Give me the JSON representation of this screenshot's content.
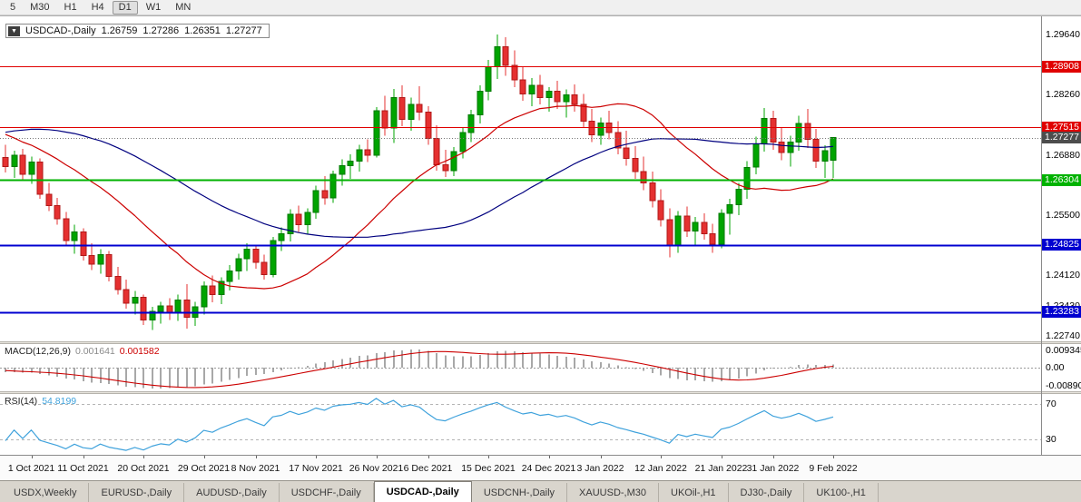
{
  "toolbar": {
    "buttons": [
      "5",
      "M30",
      "H1",
      "H4",
      "D1",
      "W1",
      "MN"
    ],
    "active": "D1"
  },
  "chart_info": {
    "dropdown": "▼",
    "symbol_period": "USDCAD-,Daily",
    "open": "1.26759",
    "high": "1.27286",
    "low": "1.26351",
    "close": "1.27277"
  },
  "chart_data": {
    "type": "candlestick",
    "symbol": "USDCAD-",
    "timeframe": "Daily",
    "ohlc_display": {
      "open": "1.26759",
      "high": "1.27286",
      "low": "1.26351",
      "close": "1.27277"
    },
    "y_axis": {
      "min": 1.2261,
      "max": 1.3006,
      "tick_labels": [
        {
          "price": 1.2964,
          "text": "1.29640"
        },
        {
          "price": 1.2826,
          "text": "1.28260"
        },
        {
          "price": 1.2688,
          "text": "1.26880"
        },
        {
          "price": 1.255,
          "text": "1.25500"
        },
        {
          "price": 1.2412,
          "text": "1.24120"
        },
        {
          "price": 1.2343,
          "text": "1.23430"
        },
        {
          "price": 1.2274,
          "text": "1.22740"
        }
      ]
    },
    "price_badges": [
      {
        "text": "1.28908",
        "price": 1.28908,
        "color": "#E00000"
      },
      {
        "text": "1.27515",
        "price": 1.27515,
        "color": "#E00000"
      },
      {
        "text": "1.27277",
        "price": 1.27277,
        "color": "#4D4D4D"
      },
      {
        "text": "1.26304",
        "price": 1.26304,
        "color": "#00B200"
      },
      {
        "text": "1.24825",
        "price": 1.24825,
        "color": "#0000D0"
      },
      {
        "text": "1.23283",
        "price": 1.23283,
        "color": "#0000D0"
      }
    ],
    "hlines": [
      {
        "price": 1.28908,
        "color": "#E00000",
        "w": 1.4
      },
      {
        "price": 1.27515,
        "color": "#E00000",
        "w": 1.4
      },
      {
        "price": 1.26304,
        "color": "#00B200",
        "w": 2
      },
      {
        "price": 1.24825,
        "color": "#0000D0",
        "w": 2
      },
      {
        "price": 1.23283,
        "color": "#0000D0",
        "w": 2
      }
    ],
    "current_price_line": {
      "price": 1.27277,
      "color": "#777777"
    },
    "x_ticks": [
      {
        "i": 3,
        "label": "1 Oct 2021"
      },
      {
        "i": 9,
        "label": "11 Oct 2021"
      },
      {
        "i": 16,
        "label": "20 Oct 2021"
      },
      {
        "i": 23,
        "label": "29 Oct 2021"
      },
      {
        "i": 29,
        "label": "8 Nov 2021"
      },
      {
        "i": 36,
        "label": "17 Nov 2021"
      },
      {
        "i": 43,
        "label": "26 Nov 2021"
      },
      {
        "i": 49,
        "label": "6 Dec 2021"
      },
      {
        "i": 56,
        "label": "15 Dec 2021"
      },
      {
        "i": 63,
        "label": "24 Dec 2021"
      },
      {
        "i": 69,
        "label": "3 Jan 2022"
      },
      {
        "i": 76,
        "label": "12 Jan 2022"
      },
      {
        "i": 83,
        "label": "21 Jan 2022"
      },
      {
        "i": 89,
        "label": "31 Jan 2022"
      },
      {
        "i": 96,
        "label": "9 Feb 2022"
      }
    ],
    "candles": [
      [
        1.2682,
        1.2712,
        1.2648,
        1.2662
      ],
      [
        1.2662,
        1.2698,
        1.2636,
        1.2688
      ],
      [
        1.2688,
        1.2702,
        1.2628,
        1.2644
      ],
      [
        1.2644,
        1.2684,
        1.2622,
        1.2672
      ],
      [
        1.2672,
        1.268,
        1.2588,
        1.2598
      ],
      [
        1.2598,
        1.2624,
        1.256,
        1.2572
      ],
      [
        1.2572,
        1.259,
        1.2528,
        1.2542
      ],
      [
        1.2542,
        1.2558,
        1.248,
        1.2492
      ],
      [
        1.2492,
        1.2528,
        1.2462,
        1.2512
      ],
      [
        1.2512,
        1.252,
        1.2446,
        1.2458
      ],
      [
        1.2458,
        1.2486,
        1.2424,
        1.2438
      ],
      [
        1.2438,
        1.2472,
        1.2416,
        1.246
      ],
      [
        1.246,
        1.2468,
        1.2398,
        1.241
      ],
      [
        1.241,
        1.2432,
        1.2368,
        1.238
      ],
      [
        1.238,
        1.2402,
        1.2336,
        1.2348
      ],
      [
        1.2348,
        1.2376,
        1.2322,
        1.2362
      ],
      [
        1.2362,
        1.2368,
        1.2298,
        1.231
      ],
      [
        1.231,
        1.234,
        1.2287,
        1.233
      ],
      [
        1.233,
        1.2352,
        1.2302,
        1.2342
      ],
      [
        1.2342,
        1.236,
        1.231,
        1.2326
      ],
      [
        1.2326,
        1.2368,
        1.2308,
        1.2356
      ],
      [
        1.2356,
        1.2392,
        1.229,
        1.2316
      ],
      [
        1.2316,
        1.2352,
        1.2296,
        1.234
      ],
      [
        1.234,
        1.2398,
        1.2322,
        1.2388
      ],
      [
        1.2388,
        1.2412,
        1.235,
        1.2368
      ],
      [
        1.2368,
        1.2408,
        1.2346,
        1.2398
      ],
      [
        1.2398,
        1.2436,
        1.2378,
        1.2422
      ],
      [
        1.2422,
        1.2462,
        1.2402,
        1.245
      ],
      [
        1.245,
        1.2486,
        1.2422,
        1.2472
      ],
      [
        1.2472,
        1.248,
        1.2428,
        1.2442
      ],
      [
        1.2442,
        1.246,
        1.2402,
        1.2414
      ],
      [
        1.2414,
        1.25,
        1.2408,
        1.2492
      ],
      [
        1.2492,
        1.2522,
        1.2468,
        1.2508
      ],
      [
        1.2508,
        1.2564,
        1.249,
        1.2552
      ],
      [
        1.2552,
        1.2572,
        1.2512,
        1.2528
      ],
      [
        1.2528,
        1.2566,
        1.2506,
        1.2556
      ],
      [
        1.2556,
        1.2618,
        1.2542,
        1.2606
      ],
      [
        1.2606,
        1.264,
        1.2574,
        1.259
      ],
      [
        1.259,
        1.2652,
        1.2578,
        1.2644
      ],
      [
        1.2644,
        1.2678,
        1.2618,
        1.2664
      ],
      [
        1.2664,
        1.269,
        1.2634,
        1.2674
      ],
      [
        1.2674,
        1.2712,
        1.265,
        1.27
      ],
      [
        1.27,
        1.2724,
        1.2672,
        1.2688
      ],
      [
        1.2688,
        1.2798,
        1.2682,
        1.279
      ],
      [
        1.279,
        1.2824,
        1.2732,
        1.275
      ],
      [
        1.275,
        1.284,
        1.2716,
        1.282
      ],
      [
        1.282,
        1.2848,
        1.2754,
        1.277
      ],
      [
        1.277,
        1.282,
        1.2744,
        1.2804
      ],
      [
        1.2804,
        1.2846,
        1.2768,
        1.2786
      ],
      [
        1.2786,
        1.28,
        1.2712,
        1.2726
      ],
      [
        1.2726,
        1.2756,
        1.2652,
        1.2666
      ],
      [
        1.2666,
        1.27,
        1.2638,
        1.2652
      ],
      [
        1.2652,
        1.2706,
        1.264,
        1.2696
      ],
      [
        1.2696,
        1.2752,
        1.268,
        1.274
      ],
      [
        1.274,
        1.2792,
        1.2718,
        1.278
      ],
      [
        1.278,
        1.2848,
        1.276,
        1.2834
      ],
      [
        1.2834,
        1.2906,
        1.2814,
        1.289
      ],
      [
        1.289,
        1.2964,
        1.2862,
        1.2936
      ],
      [
        1.2936,
        1.2958,
        1.287,
        1.2894
      ],
      [
        1.2894,
        1.2928,
        1.2844,
        1.286
      ],
      [
        1.286,
        1.289,
        1.2812,
        1.2828
      ],
      [
        1.2828,
        1.2864,
        1.28,
        1.2848
      ],
      [
        1.2848,
        1.2872,
        1.2804,
        1.282
      ],
      [
        1.282,
        1.2844,
        1.2788,
        1.2834
      ],
      [
        1.2834,
        1.2858,
        1.2794,
        1.281
      ],
      [
        1.281,
        1.2838,
        1.2774,
        1.2826
      ],
      [
        1.2826,
        1.285,
        1.2788,
        1.2804
      ],
      [
        1.2804,
        1.2828,
        1.275,
        1.2766
      ],
      [
        1.2766,
        1.2794,
        1.2718,
        1.2734
      ],
      [
        1.2734,
        1.2774,
        1.2712,
        1.2762
      ],
      [
        1.2762,
        1.279,
        1.2724,
        1.274
      ],
      [
        1.274,
        1.2766,
        1.269,
        1.2704
      ],
      [
        1.2704,
        1.2744,
        1.2664,
        1.268
      ],
      [
        1.268,
        1.2708,
        1.2634,
        1.265
      ],
      [
        1.265,
        1.2684,
        1.2608,
        1.2624
      ],
      [
        1.2624,
        1.265,
        1.2568,
        1.2584
      ],
      [
        1.2584,
        1.261,
        1.2524,
        1.254
      ],
      [
        1.254,
        1.2566,
        1.2453,
        1.248
      ],
      [
        1.248,
        1.256,
        1.2464,
        1.2548
      ],
      [
        1.2548,
        1.257,
        1.25,
        1.2514
      ],
      [
        1.2514,
        1.2546,
        1.248,
        1.2534
      ],
      [
        1.2534,
        1.2554,
        1.2494,
        1.2508
      ],
      [
        1.2508,
        1.253,
        1.2464,
        1.2484
      ],
      [
        1.2484,
        1.2564,
        1.2474,
        1.2554
      ],
      [
        1.2554,
        1.2588,
        1.2506,
        1.2574
      ],
      [
        1.2574,
        1.2624,
        1.255,
        1.261
      ],
      [
        1.261,
        1.2674,
        1.2588,
        1.266
      ],
      [
        1.266,
        1.273,
        1.2644,
        1.2714
      ],
      [
        1.2714,
        1.2796,
        1.2696,
        1.2772
      ],
      [
        1.2772,
        1.279,
        1.27,
        1.2718
      ],
      [
        1.2718,
        1.275,
        1.2676,
        1.2694
      ],
      [
        1.2694,
        1.2732,
        1.2662,
        1.2718
      ],
      [
        1.2718,
        1.2778,
        1.2698,
        1.276
      ],
      [
        1.276,
        1.2794,
        1.2704,
        1.2724
      ],
      [
        1.2724,
        1.2748,
        1.2658,
        1.2674
      ],
      [
        1.2674,
        1.271,
        1.2636,
        1.2698
      ],
      [
        1.26759,
        1.27286,
        1.26351,
        1.27277
      ]
    ],
    "pre_window_closes": [
      1.253,
      1.2548,
      1.2565,
      1.258,
      1.2598,
      1.2615,
      1.2632,
      1.265,
      1.2668,
      1.2685,
      1.2702,
      1.272,
      1.2738,
      1.2755,
      1.2772,
      1.279,
      1.2808,
      1.2825,
      1.2842,
      1.286,
      1.2872,
      1.288,
      1.2885,
      1.2882,
      1.2875,
      1.2862,
      1.2848,
      1.2832,
      1.2815,
      1.2798,
      1.2782,
      1.2768,
      1.2755,
      1.2742,
      1.273,
      1.272,
      1.2712,
      1.2705,
      1.27,
      1.2696,
      1.2692,
      1.269,
      1.2688,
      1.2686,
      1.2684
    ],
    "moving_averages": [
      {
        "period": 20,
        "color": "#CC0000",
        "name": "ma-fast-red"
      },
      {
        "period": 45,
        "color": "#00007F",
        "name": "ma-slow-blue"
      }
    ],
    "macd": {
      "label": "MACD(12,26,9)",
      "value": "0.001641",
      "signal_value": "0.001582",
      "fast": 12,
      "slow": 26,
      "signal": 9,
      "scale_top": "0.009345",
      "scale_zero": "0.00",
      "scale_bottom": "-0.008905"
    },
    "rsi": {
      "label": "RSI(14)",
      "value": "54.8199",
      "period": 14,
      "levels": [
        70,
        30
      ],
      "level_labels": [
        "70",
        "30"
      ]
    },
    "colors": {
      "up": "#00A400",
      "up_border": "#007800",
      "down": "#E53030",
      "down_border": "#B01818",
      "background": "#FFFFFF",
      "macd_histogram": "#A8A8A8",
      "macd_signal": "#CC0000",
      "rsi_line": "#3FA2DC"
    }
  },
  "tabs": {
    "items": [
      "USDX,Weekly",
      "EURUSD-,Daily",
      "AUDUSD-,Daily",
      "USDCHF-,Daily",
      "USDCAD-,Daily",
      "USDCNH-,Daily",
      "XAUUSD-,M30",
      "UKOil-,H1",
      "DJ30-,Daily",
      "UK100-,H1"
    ],
    "active_index": 4
  }
}
